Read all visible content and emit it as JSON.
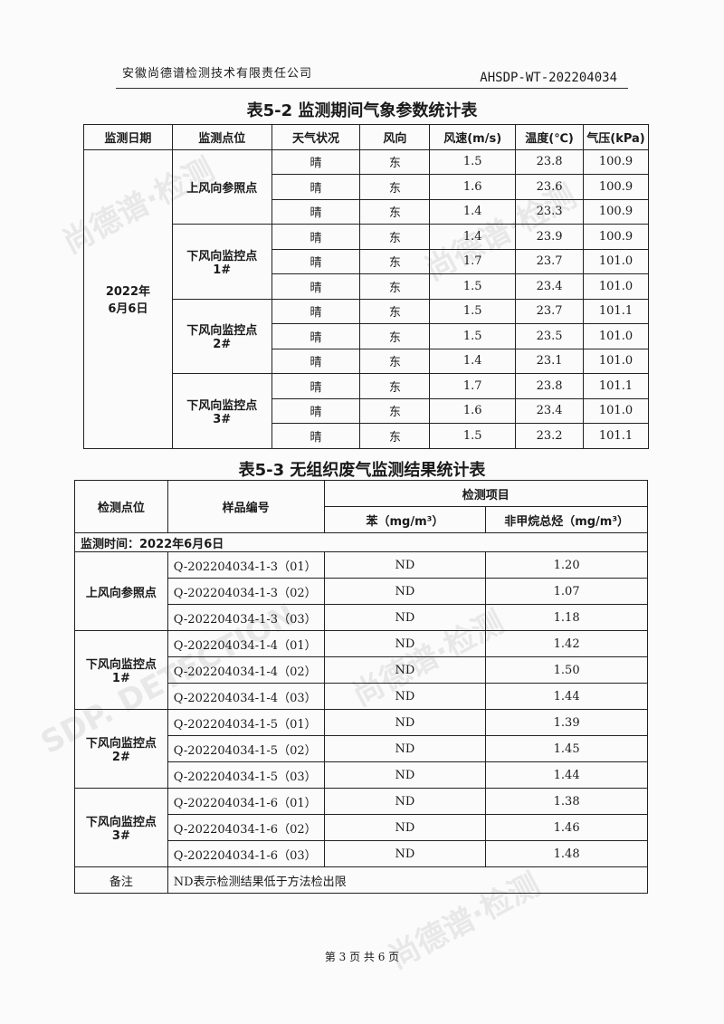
{
  "header": {
    "company": "安徽尚德谱检测技术有限责任公司",
    "report_no": "AHSDP-WT-202204034"
  },
  "table1": {
    "title": "表5-2 监测期间气象参数统计表",
    "headers": [
      "监测日期",
      "监测点位",
      "天气状况",
      "风向",
      "风速(m/s)",
      "温度(℃)",
      "气压(kPa)"
    ],
    "date": "2022年\n6月6日",
    "groups": [
      {
        "site": "上风向参照点",
        "rows": [
          [
            "晴",
            "东",
            "1.5",
            "23.8",
            "100.9"
          ],
          [
            "晴",
            "东",
            "1.6",
            "23.6",
            "100.9"
          ],
          [
            "晴",
            "东",
            "1.4",
            "23.3",
            "100.9"
          ]
        ]
      },
      {
        "site": "下风向监控点\n1#",
        "rows": [
          [
            "晴",
            "东",
            "1.4",
            "23.9",
            "100.9"
          ],
          [
            "晴",
            "东",
            "1.7",
            "23.7",
            "101.0"
          ],
          [
            "晴",
            "东",
            "1.5",
            "23.4",
            "101.0"
          ]
        ]
      },
      {
        "site": "下风向监控点\n2#",
        "rows": [
          [
            "晴",
            "东",
            "1.5",
            "23.7",
            "101.1"
          ],
          [
            "晴",
            "东",
            "1.5",
            "23.5",
            "101.0"
          ],
          [
            "晴",
            "东",
            "1.4",
            "23.1",
            "101.0"
          ]
        ]
      },
      {
        "site": "下风向监控点\n3#",
        "rows": [
          [
            "晴",
            "东",
            "1.7",
            "23.8",
            "101.1"
          ],
          [
            "晴",
            "东",
            "1.6",
            "23.4",
            "101.0"
          ],
          [
            "晴",
            "东",
            "1.5",
            "23.2",
            "101.1"
          ]
        ]
      }
    ]
  },
  "table2": {
    "title": "表5-3 无组织废气监测结果统计表",
    "headers": {
      "site": "检测点位",
      "sample": "样品编号",
      "items": "检测项目",
      "benzene": "苯（mg/m³）",
      "nmhc": "非甲烷总烃（mg/m³）"
    },
    "time_row": "监测时间：2022年6月6日",
    "groups": [
      {
        "site": "上风向参照点",
        "rows": [
          [
            "Q-202204034-1-3（01）",
            "ND",
            "1.20"
          ],
          [
            "Q-202204034-1-3（02）",
            "ND",
            "1.07"
          ],
          [
            "Q-202204034-1-3（03）",
            "ND",
            "1.18"
          ]
        ]
      },
      {
        "site": "下风向监控点\n1#",
        "rows": [
          [
            "Q-202204034-1-4（01）",
            "ND",
            "1.42"
          ],
          [
            "Q-202204034-1-4（02）",
            "ND",
            "1.50"
          ],
          [
            "Q-202204034-1-4（03）",
            "ND",
            "1.44"
          ]
        ]
      },
      {
        "site": "下风向监控点\n2#",
        "rows": [
          [
            "Q-202204034-1-5（01）",
            "ND",
            "1.39"
          ],
          [
            "Q-202204034-1-5（02）",
            "ND",
            "1.45"
          ],
          [
            "Q-202204034-1-5（03）",
            "ND",
            "1.44"
          ]
        ]
      },
      {
        "site": "下风向监控点\n3#",
        "rows": [
          [
            "Q-202204034-1-6（01）",
            "ND",
            "1.38"
          ],
          [
            "Q-202204034-1-6（02）",
            "ND",
            "1.46"
          ],
          [
            "Q-202204034-1-6（03）",
            "ND",
            "1.48"
          ]
        ]
      }
    ],
    "remark_label": "备注",
    "remark": "ND表示检测结果低于方法检出限"
  },
  "footer": {
    "page": "第 3 页 共 6 页"
  },
  "watermark": {
    "text": "尚德谱·检测",
    "sub": "SDP. DETECTION"
  }
}
